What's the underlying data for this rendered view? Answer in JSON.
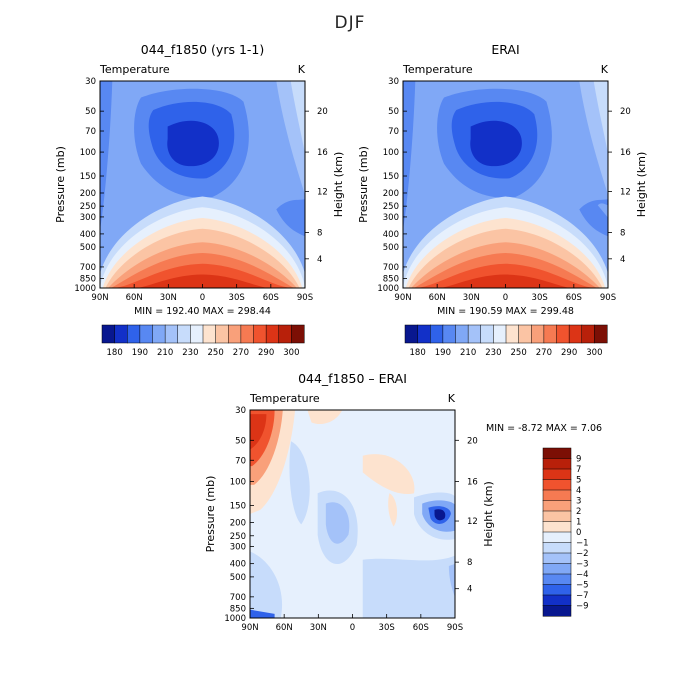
{
  "figure_title": "DJF",
  "chart_data": [
    {
      "type": "heatmap",
      "title": "044_f1850 (yrs 1-1)",
      "variable": "Temperature",
      "units": "K",
      "xlabel": "",
      "ylabel": "Pressure (mb)",
      "ylabel_right": "Height (km)",
      "x_ticks": [
        "90N",
        "60N",
        "30N",
        "0",
        "30S",
        "60S",
        "90S"
      ],
      "y_ticks": [
        "30",
        "50",
        "70",
        "100",
        "150",
        "200",
        "250",
        "300",
        "400",
        "500",
        "700",
        "850",
        "1000"
      ],
      "y_ticks_right": [
        "20",
        "16",
        "12",
        "8",
        "4"
      ],
      "stats": "MIN = 192.40   MAX = 298.44",
      "colorbar_labels": [
        "180",
        "190",
        "210",
        "230",
        "250",
        "270",
        "290",
        "300"
      ],
      "min": 192.4,
      "max": 298.44
    },
    {
      "type": "heatmap",
      "title": "ERAI",
      "variable": "Temperature",
      "units": "K",
      "xlabel": "",
      "ylabel": "Pressure (mb)",
      "ylabel_right": "Height (km)",
      "x_ticks": [
        "90N",
        "60N",
        "30N",
        "0",
        "30S",
        "60S",
        "90S"
      ],
      "y_ticks": [
        "30",
        "50",
        "70",
        "100",
        "150",
        "200",
        "250",
        "300",
        "400",
        "500",
        "700",
        "850",
        "1000"
      ],
      "y_ticks_right": [
        "20",
        "16",
        "12",
        "8",
        "4"
      ],
      "stats": "MIN = 190.59   MAX = 299.48",
      "colorbar_labels": [
        "180",
        "190",
        "210",
        "230",
        "250",
        "270",
        "290",
        "300"
      ],
      "min": 190.59,
      "max": 299.48
    },
    {
      "type": "heatmap",
      "title": "044_f1850 – ERAI",
      "variable": "Temperature",
      "units": "K",
      "xlabel": "",
      "ylabel": "Pressure (mb)",
      "ylabel_right": "Height (km)",
      "x_ticks": [
        "90N",
        "60N",
        "30N",
        "0",
        "30S",
        "60S",
        "90S"
      ],
      "y_ticks": [
        "30",
        "50",
        "70",
        "100",
        "150",
        "200",
        "250",
        "300",
        "400",
        "500",
        "700",
        "850",
        "1000"
      ],
      "y_ticks_right": [
        "20",
        "16",
        "12",
        "8",
        "4"
      ],
      "stats": "MIN =   -8.72   MAX =    7.06",
      "colorbar_labels": [
        "9",
        "7",
        "5",
        "4",
        "3",
        "2",
        "1",
        "0",
        "−1",
        "−2",
        "−3",
        "−4",
        "−5",
        "−7",
        "−9"
      ],
      "min": -8.72,
      "max": 7.06
    }
  ],
  "colors": {
    "abs_scale": [
      "#08178f",
      "#1230c8",
      "#2f62ea",
      "#5888f2",
      "#80a8f6",
      "#a4c2f9",
      "#c7dcfb",
      "#e6f0fd",
      "#fde3cf",
      "#fbc4a4",
      "#f9a07a",
      "#f67a52",
      "#f0532e",
      "#dc3416",
      "#b8200a",
      "#7c0f05"
    ],
    "diff_scale": [
      "#7c0f05",
      "#b8200a",
      "#dc3416",
      "#f0532e",
      "#f67a52",
      "#f9a07a",
      "#fbc4a4",
      "#fde3cf",
      "#e6f0fd",
      "#c7dcfb",
      "#a4c2f9",
      "#80a8f6",
      "#5888f2",
      "#2f62ea",
      "#1230c8",
      "#08178f"
    ]
  }
}
